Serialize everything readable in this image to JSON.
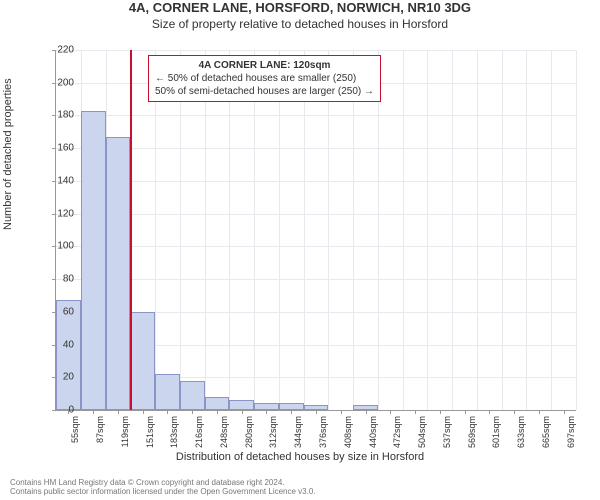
{
  "title": "4A, CORNER LANE, HORSFORD, NORWICH, NR10 3DG",
  "subtitle": "Size of property relative to detached houses in Horsford",
  "ylabel": "Number of detached properties",
  "xlabel": "Distribution of detached houses by size in Horsford",
  "chart": {
    "type": "histogram",
    "ylim": [
      0,
      220
    ],
    "ytick_step": 20,
    "bar_color": "#ccd5ee",
    "bar_border": "#8895c5",
    "background_color": "#ffffff",
    "grid_color": "#e8e8ee",
    "marker_color": "#c8102e",
    "marker_at_category_index": 2,
    "categories": [
      "55sqm",
      "87sqm",
      "119sqm",
      "151sqm",
      "183sqm",
      "216sqm",
      "248sqm",
      "280sqm",
      "312sqm",
      "344sqm",
      "376sqm",
      "408sqm",
      "440sqm",
      "472sqm",
      "504sqm",
      "537sqm",
      "569sqm",
      "601sqm",
      "633sqm",
      "665sqm",
      "697sqm"
    ],
    "values": [
      67,
      183,
      167,
      60,
      22,
      18,
      8,
      6,
      4,
      4,
      3,
      0,
      3,
      0,
      0,
      0,
      0,
      0,
      0,
      0,
      0
    ]
  },
  "infobox": {
    "title": "4A CORNER LANE: 120sqm",
    "line1": "← 50% of detached houses are smaller (250)",
    "line2": "50% of semi-detached houses are larger (250) →"
  },
  "footer": {
    "line1": "Contains HM Land Registry data © Crown copyright and database right 2024.",
    "line2": "Contains public sector information licensed under the Open Government Licence v3.0."
  }
}
